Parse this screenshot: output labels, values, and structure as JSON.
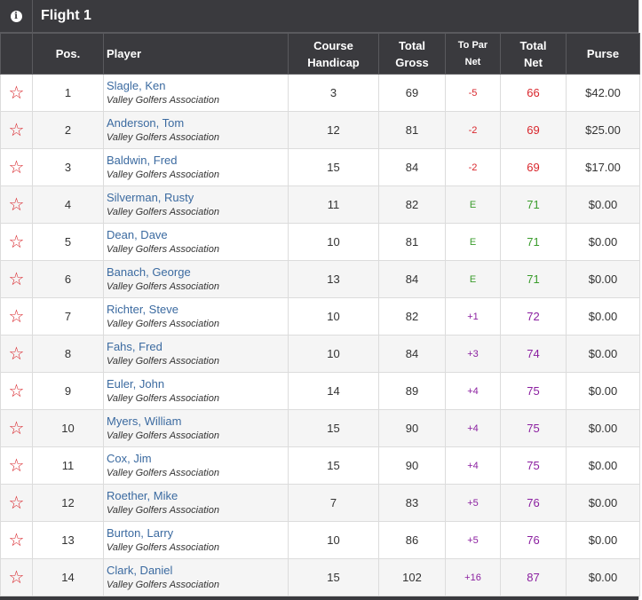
{
  "flight": {
    "title": "Flight 1",
    "info_icon": "info-icon"
  },
  "columns": {
    "pos": "Pos.",
    "player": "Player",
    "course_handicap": [
      "Course",
      "Handicap"
    ],
    "total_gross": [
      "Total",
      "Gross"
    ],
    "to_par_net": [
      "To Par",
      "Net"
    ],
    "total_net": [
      "Total",
      "Net"
    ],
    "purse": "Purse"
  },
  "colors": {
    "under_par": "#d9262c",
    "even_par": "#3a9c2c",
    "over_par": "#8b1fa0",
    "star": "#d9262c",
    "player_link": "#3b6aa0",
    "header_bg": "#3a3a3e"
  },
  "favorite_icon": "star-outline-icon",
  "rows": [
    {
      "pos": "1",
      "name": "Slagle, Ken",
      "assoc": "Valley Golfers Association",
      "handicap": "3",
      "gross": "69",
      "to_par": "-5",
      "par_status": "under",
      "net": "66",
      "purse": "$42.00"
    },
    {
      "pos": "2",
      "name": "Anderson, Tom",
      "assoc": "Valley Golfers Association",
      "handicap": "12",
      "gross": "81",
      "to_par": "-2",
      "par_status": "under",
      "net": "69",
      "purse": "$25.00"
    },
    {
      "pos": "3",
      "name": "Baldwin, Fred",
      "assoc": "Valley Golfers Association",
      "handicap": "15",
      "gross": "84",
      "to_par": "-2",
      "par_status": "under",
      "net": "69",
      "purse": "$17.00"
    },
    {
      "pos": "4",
      "name": "Silverman, Rusty",
      "assoc": "Valley Golfers Association",
      "handicap": "11",
      "gross": "82",
      "to_par": "E",
      "par_status": "even",
      "net": "71",
      "purse": "$0.00"
    },
    {
      "pos": "5",
      "name": "Dean, Dave",
      "assoc": "Valley Golfers Association",
      "handicap": "10",
      "gross": "81",
      "to_par": "E",
      "par_status": "even",
      "net": "71",
      "purse": "$0.00"
    },
    {
      "pos": "6",
      "name": "Banach, George",
      "assoc": "Valley Golfers Association",
      "handicap": "13",
      "gross": "84",
      "to_par": "E",
      "par_status": "even",
      "net": "71",
      "purse": "$0.00"
    },
    {
      "pos": "7",
      "name": "Richter, Steve",
      "assoc": "Valley Golfers Association",
      "handicap": "10",
      "gross": "82",
      "to_par": "+1",
      "par_status": "over",
      "net": "72",
      "purse": "$0.00"
    },
    {
      "pos": "8",
      "name": "Fahs, Fred",
      "assoc": "Valley Golfers Association",
      "handicap": "10",
      "gross": "84",
      "to_par": "+3",
      "par_status": "over",
      "net": "74",
      "purse": "$0.00"
    },
    {
      "pos": "9",
      "name": "Euler, John",
      "assoc": "Valley Golfers Association",
      "handicap": "14",
      "gross": "89",
      "to_par": "+4",
      "par_status": "over",
      "net": "75",
      "purse": "$0.00"
    },
    {
      "pos": "10",
      "name": "Myers, William",
      "assoc": "Valley Golfers Association",
      "handicap": "15",
      "gross": "90",
      "to_par": "+4",
      "par_status": "over",
      "net": "75",
      "purse": "$0.00"
    },
    {
      "pos": "11",
      "name": "Cox, Jim",
      "assoc": "Valley Golfers Association",
      "handicap": "15",
      "gross": "90",
      "to_par": "+4",
      "par_status": "over",
      "net": "75",
      "purse": "$0.00"
    },
    {
      "pos": "12",
      "name": "Roether, Mike",
      "assoc": "Valley Golfers Association",
      "handicap": "7",
      "gross": "83",
      "to_par": "+5",
      "par_status": "over",
      "net": "76",
      "purse": "$0.00"
    },
    {
      "pos": "13",
      "name": "Burton, Larry",
      "assoc": "Valley Golfers Association",
      "handicap": "10",
      "gross": "86",
      "to_par": "+5",
      "par_status": "over",
      "net": "76",
      "purse": "$0.00"
    },
    {
      "pos": "14",
      "name": "Clark, Daniel",
      "assoc": "Valley Golfers Association",
      "handicap": "15",
      "gross": "102",
      "to_par": "+16",
      "par_status": "over",
      "net": "87",
      "purse": "$0.00"
    }
  ]
}
